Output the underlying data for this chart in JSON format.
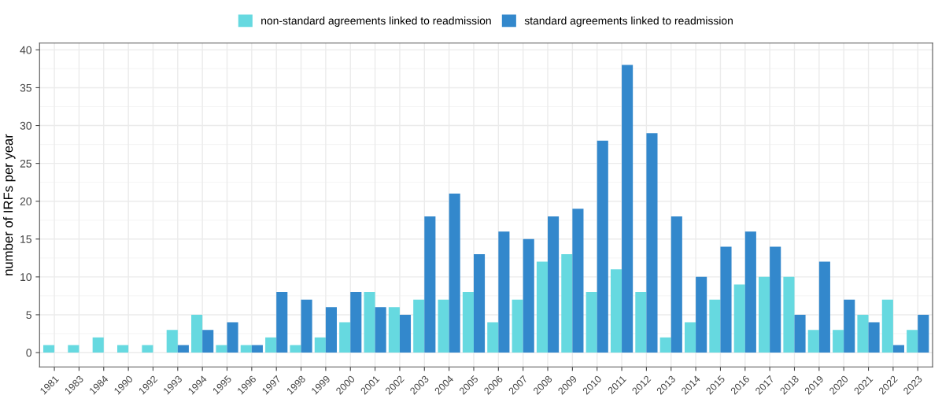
{
  "chart_data": {
    "type": "bar",
    "ylabel": "number of IRFs per year",
    "categories": [
      "1981",
      "1983",
      "1984",
      "1990",
      "1992",
      "1993",
      "1994",
      "1995",
      "1996",
      "1997",
      "1998",
      "1999",
      "2000",
      "2001",
      "2002",
      "2003",
      "2004",
      "2005",
      "2006",
      "2007",
      "2008",
      "2009",
      "2010",
      "2011",
      "2012",
      "2013",
      "2014",
      "2015",
      "2016",
      "2017",
      "2018",
      "2019",
      "2020",
      "2021",
      "2022",
      "2023"
    ],
    "series": [
      {
        "name": "non-standard agreements linked to readmission",
        "color": "#66d9e0",
        "values": [
          1,
          1,
          2,
          1,
          1,
          3,
          5,
          1,
          1,
          2,
          1,
          2,
          4,
          8,
          6,
          7,
          7,
          8,
          4,
          7,
          12,
          13,
          8,
          11,
          8,
          2,
          4,
          7,
          9,
          10,
          10,
          3,
          3,
          5,
          7,
          3
        ]
      },
      {
        "name": "standard agreements linked to readmission",
        "color": "#3388cc",
        "values": [
          null,
          null,
          null,
          null,
          null,
          1,
          3,
          4,
          1,
          8,
          7,
          6,
          8,
          6,
          5,
          18,
          21,
          13,
          16,
          15,
          18,
          19,
          28,
          38,
          29,
          18,
          10,
          14,
          16,
          14,
          5,
          12,
          7,
          4,
          1,
          5
        ]
      }
    ],
    "ylim": [
      -1.9,
      40.9
    ],
    "yticks": [
      0,
      5,
      10,
      15,
      20,
      25,
      30,
      35,
      40
    ],
    "grid": true,
    "legend": "top"
  }
}
